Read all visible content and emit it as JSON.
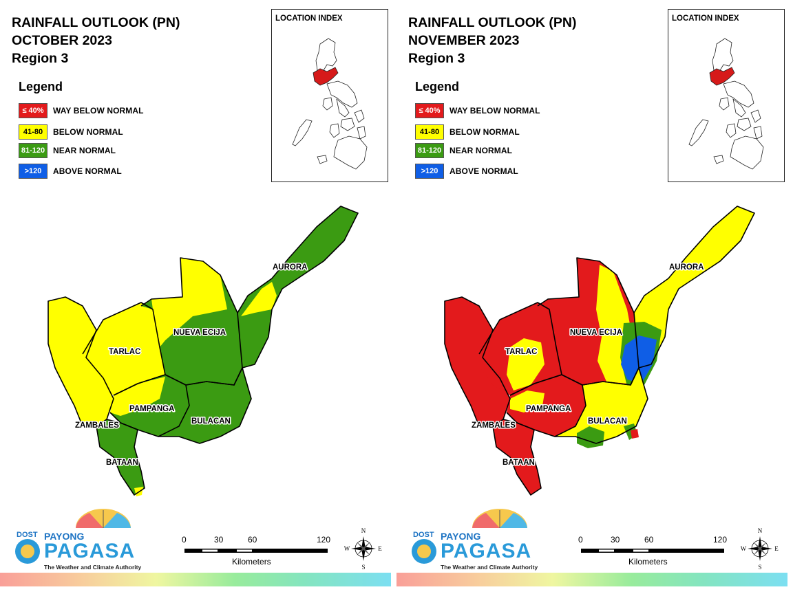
{
  "colors": {
    "way_below": "#e31a1c",
    "below": "#ffff00",
    "near": "#3b9b12",
    "above": "#0f5ee6",
    "boundary": "#000000"
  },
  "maps": [
    {
      "title": [
        "RAINFALL OUTLOOK (PN)",
        "OCTOBER 2023",
        "Region 3"
      ],
      "legend_title": "Legend",
      "legend": [
        {
          "range": "≤ 40%",
          "label": "WAY BELOW NORMAL",
          "color": "#e31a1c",
          "text_color": "#ffffff"
        },
        {
          "range": "41-80",
          "label": "BELOW NORMAL",
          "color": "#ffff00",
          "text_color": "#000000"
        },
        {
          "range": "81-120",
          "label": "NEAR NORMAL",
          "color": "#3b9b12",
          "text_color": "#ffffff"
        },
        {
          "range": ">120",
          "label": "ABOVE NORMAL",
          "color": "#0f5ee6",
          "text_color": "#ffffff"
        }
      ],
      "location_index_title": "LOCATION INDEX",
      "provinces": [
        "AURORA",
        "NUEVA ECIJA",
        "TARLAC",
        "PAMPANGA",
        "BULACAN",
        "ZAMBALES",
        "BATAAN"
      ],
      "province_outlook": {
        "AURORA": "near",
        "NUEVA ECIJA": "near",
        "TARLAC": "below",
        "PAMPANGA": "below",
        "BULACAN": "near",
        "ZAMBALES": "below",
        "BATAAN": "near"
      },
      "scale": {
        "ticks": [
          "0",
          "30",
          "60",
          "120"
        ],
        "unit": "Kilometers"
      },
      "compass": {
        "n": "N",
        "s": "S",
        "e": "E",
        "w": "W"
      },
      "logo": {
        "dost": "DOST",
        "payong": "PAYONG",
        "pagasa": "PAGASA",
        "tagline": "The Weather and Climate Authority"
      }
    },
    {
      "title": [
        "RAINFALL OUTLOOK (PN)",
        "NOVEMBER 2023",
        "Region 3"
      ],
      "legend_title": "Legend",
      "legend": [
        {
          "range": "≤ 40%",
          "label": "WAY BELOW NORMAL",
          "color": "#e31a1c",
          "text_color": "#ffffff"
        },
        {
          "range": "41-80",
          "label": "BELOW NORMAL",
          "color": "#ffff00",
          "text_color": "#000000"
        },
        {
          "range": "81-120",
          "label": "NEAR NORMAL",
          "color": "#3b9b12",
          "text_color": "#ffffff"
        },
        {
          "range": ">120",
          "label": "ABOVE NORMAL",
          "color": "#0f5ee6",
          "text_color": "#ffffff"
        }
      ],
      "location_index_title": "LOCATION INDEX",
      "provinces": [
        "AURORA",
        "NUEVA ECIJA",
        "TARLAC",
        "PAMPANGA",
        "BULACAN",
        "ZAMBALES",
        "BATAAN"
      ],
      "province_outlook": {
        "AURORA": "below",
        "NUEVA ECIJA": "way_below",
        "TARLAC": "way_below",
        "PAMPANGA": "way_below",
        "BULACAN": "below",
        "ZAMBALES": "way_below",
        "BATAAN": "way_below"
      },
      "scale": {
        "ticks": [
          "0",
          "30",
          "60",
          "120"
        ],
        "unit": "Kilometers"
      },
      "compass": {
        "n": "N",
        "s": "S",
        "e": "E",
        "w": "W"
      },
      "logo": {
        "dost": "DOST",
        "payong": "PAYONG",
        "pagasa": "PAGASA",
        "tagline": "The Weather and Climate Authority"
      }
    }
  ]
}
